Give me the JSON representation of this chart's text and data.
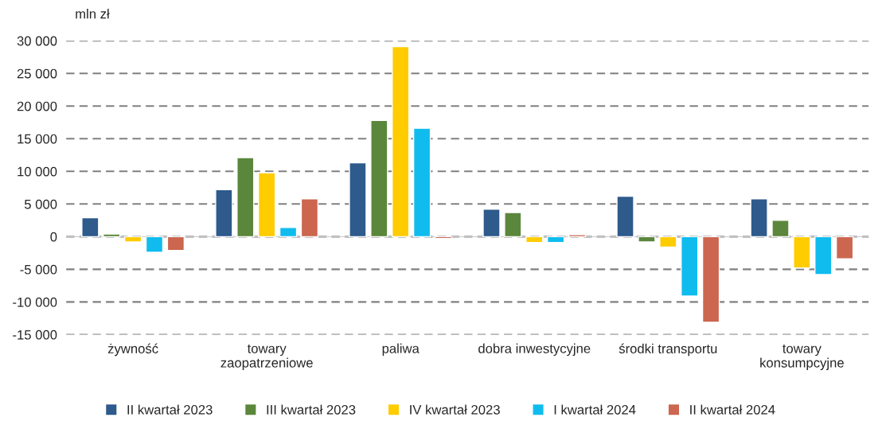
{
  "chart_data": {
    "type": "bar",
    "ylabel": "mln zł",
    "categories": [
      "żywność",
      "towary\nzaopatrzeniowe",
      "paliwa",
      "dobra inwestycyjne",
      "środki transportu",
      "towary\nkonsumpcyjne"
    ],
    "series": [
      {
        "name": "II kwartał 2023",
        "color": "#2e5a8c",
        "values": [
          2900,
          7200,
          11300,
          4200,
          6200,
          5800
        ]
      },
      {
        "name": "III kwartał 2023",
        "color": "#5b873c",
        "values": [
          400,
          12100,
          17800,
          3700,
          -800,
          2500
        ]
      },
      {
        "name": "IV kwartał 2023",
        "color": "#ffcc00",
        "values": [
          -800,
          9800,
          29100,
          -900,
          -1600,
          -4800
        ]
      },
      {
        "name": "I kwartał 2024",
        "color": "#10bcee",
        "values": [
          -2400,
          1400,
          16600,
          -900,
          -9100,
          -5800
        ]
      },
      {
        "name": "II kwartał 2024",
        "color": "#cc664f",
        "values": [
          -2100,
          5800,
          -300,
          300,
          -13100,
          -3400
        ]
      }
    ],
    "ylim": [
      -15000,
      30000
    ],
    "yticks": [
      {
        "value": -15000,
        "label": "-15 000"
      },
      {
        "value": -10000,
        "label": "-10 000"
      },
      {
        "value": -5000,
        "label": "-5 000"
      },
      {
        "value": 0,
        "label": "0"
      },
      {
        "value": 5000,
        "label": "5 000"
      },
      {
        "value": 10000,
        "label": "10 000"
      },
      {
        "value": 15000,
        "label": "15 000"
      },
      {
        "value": 20000,
        "label": "20 000"
      },
      {
        "value": 25000,
        "label": "25 000"
      },
      {
        "value": 30000,
        "label": "30 000"
      }
    ],
    "grid": "y",
    "legend": "bottom"
  }
}
